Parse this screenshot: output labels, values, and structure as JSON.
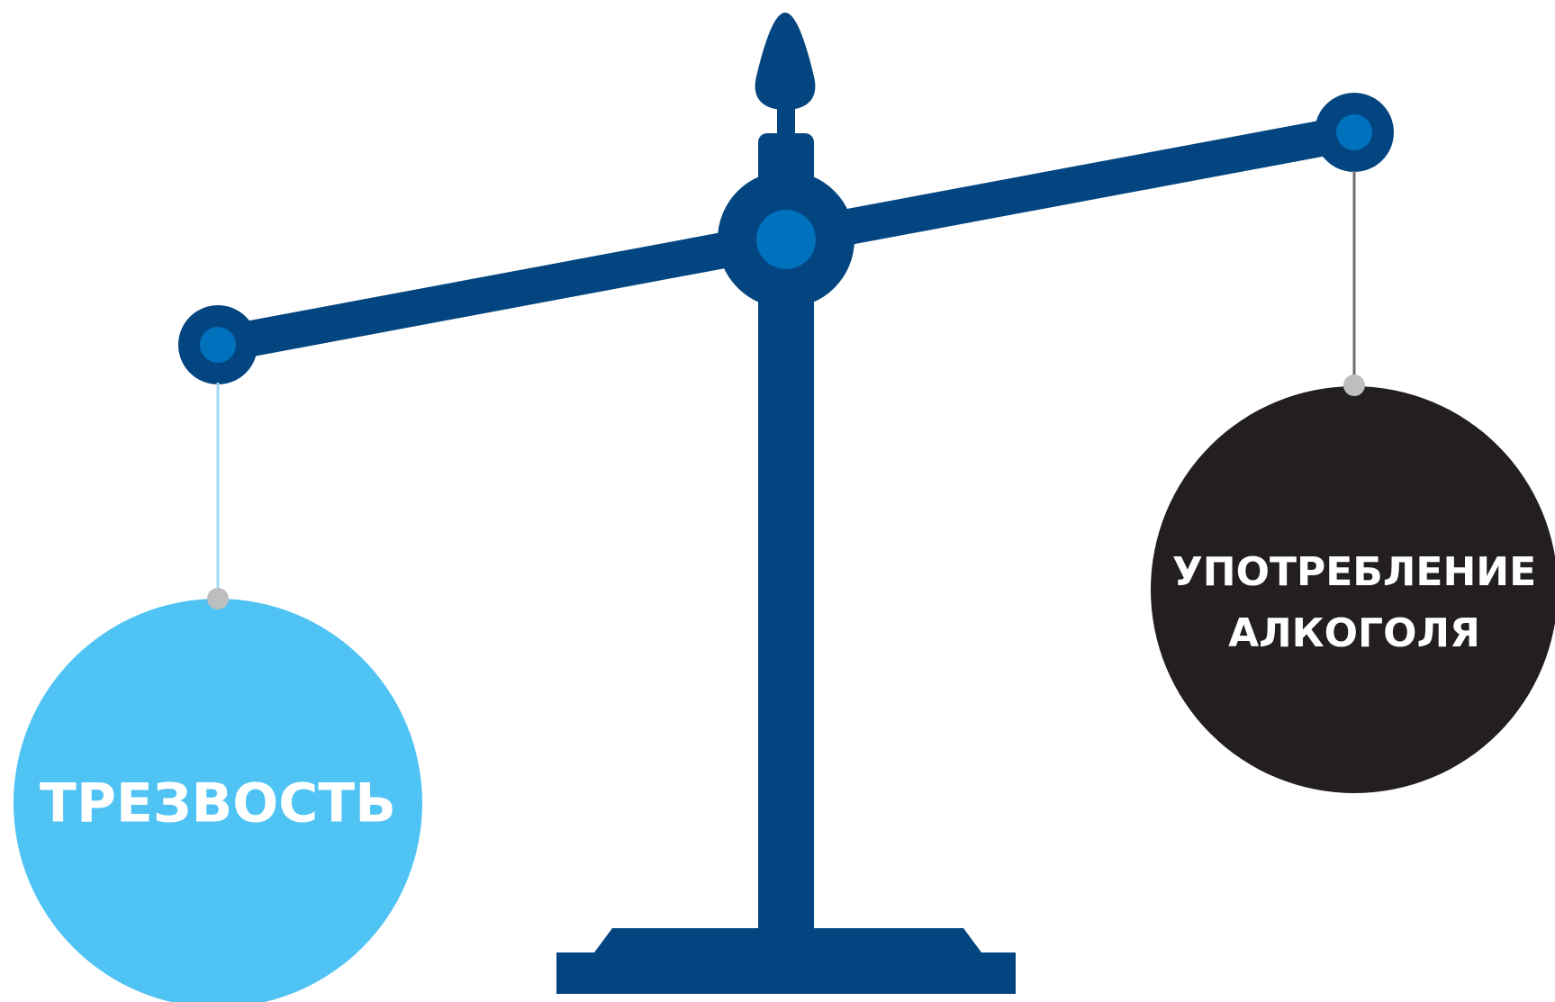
{
  "diagram": {
    "type": "balance-scale",
    "tilt": "left pan lower (left side heavier)",
    "left_weight": {
      "label": "ТРЕЗВОСТЬ",
      "color": "#4fc3f3",
      "text_color": "#ffffff",
      "position": "lower-left"
    },
    "right_weight": {
      "label_line1": "УПОТРЕБЛЕНИЕ",
      "label_line2": "АЛКОГОЛЯ",
      "color": "#231f20",
      "text_color": "#ffffff",
      "position": "upper-right"
    },
    "scale_color": "#034580",
    "pivot_accent_color": "#0071bc",
    "left_string_color": "#9fd8f5",
    "right_string_color": "#6d6e71",
    "hook_color": "#bcbec0"
  }
}
